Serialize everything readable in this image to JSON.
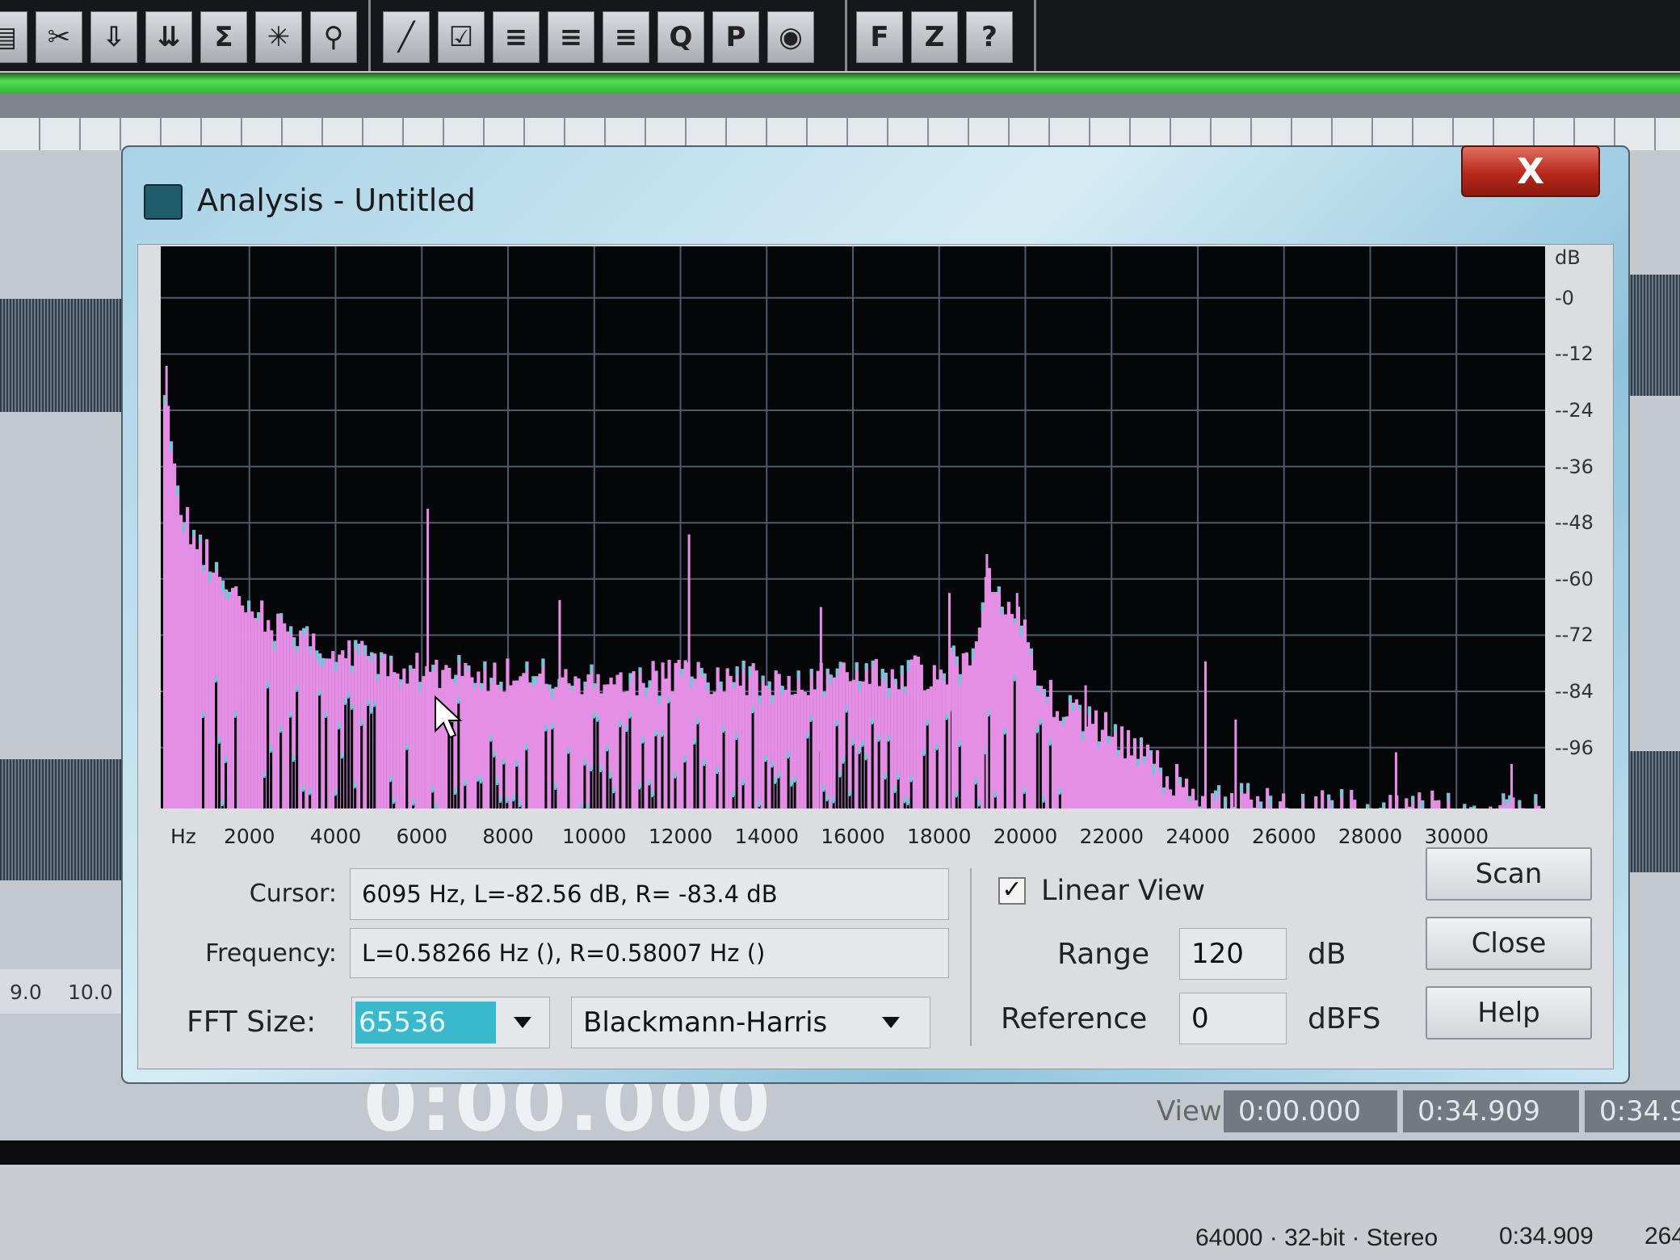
{
  "toolbar": {
    "group1": [
      "paste-icon",
      "cut-icon",
      "mix-paste-icon",
      "insert-icon",
      "zoom-waveform-icon",
      "spectrum-icon",
      "find-icon"
    ],
    "group2": [
      "analysis-icon",
      "checklist-icon",
      "meter-icon",
      "eq-icon",
      "waveform-icon",
      "q-document-icon",
      "p-document-icon",
      "cd-icon"
    ],
    "group3": [
      "f-icon",
      "scroll-icon",
      "help-icon"
    ],
    "group3_glyphs": [
      "F",
      "Z",
      "?"
    ],
    "group2_glyphs": [
      "╱",
      "☑",
      "≡",
      "≡",
      "≡",
      "Q",
      "P",
      "◉"
    ],
    "group1_glyphs": [
      "▤",
      "✂",
      "⇩",
      "⇊",
      "Σ",
      "✳",
      "⚲"
    ]
  },
  "colors": {
    "accent_green": "#4fe04f",
    "spectrum_fill": "#e58ee6",
    "spectrum_edge": "#3fe0d0",
    "plot_bg": "#050608",
    "grid": "#4c5a6c",
    "selection": "#3bb9cc",
    "close_red": "#b8281a"
  },
  "background": {
    "ruler_labels": [
      "9.0",
      "10.0"
    ],
    "time_display": "0:00.000",
    "view_label": "View",
    "view_start": "0:00.000",
    "view_end": "0:34.909",
    "view_length": "0:34.9",
    "status_format": "64000 · 32-bit · Stereo",
    "status_length": "0:34.909",
    "status_size": "264"
  },
  "dialog": {
    "title": "Analysis - Untitled",
    "close_glyph": "X",
    "cursor_label": "Cursor:",
    "cursor_value": "6095 Hz, L=-82.56 dB, R= -83.4 dB",
    "frequency_label": "Frequency:",
    "frequency_value": "L=0.58266 Hz (), R=0.58007 Hz ()",
    "fft_label": "FFT Size:",
    "fft_value": "65536",
    "window_value": "Blackmann-Harris",
    "linear_view_label": "Linear View",
    "linear_view_checked": true,
    "range_label": "Range",
    "range_value": "120",
    "range_unit": "dB",
    "reference_label": "Reference",
    "reference_value": "0",
    "reference_unit": "dBFS",
    "scan_button": "Scan",
    "close_button": "Close",
    "help_button": "Help"
  },
  "chart_data": {
    "type": "area",
    "xlabel": "Hz",
    "ylabel": "dB",
    "xlim": [
      0,
      32000
    ],
    "ylim": [
      -109,
      11
    ],
    "grid": true,
    "x_ticks": [
      2000,
      4000,
      6000,
      8000,
      10000,
      12000,
      14000,
      16000,
      18000,
      20000,
      22000,
      24000,
      26000,
      28000,
      30000
    ],
    "x_tick_labels": [
      "2000",
      "4000",
      "6000",
      "8000",
      "10000",
      "12000",
      "14000",
      "16000",
      "18000",
      "20000",
      "22000",
      "24000",
      "26000",
      "28000",
      "30000"
    ],
    "y_ticks": [
      0,
      -12,
      -24,
      -36,
      -48,
      -60,
      -72,
      -84,
      -96
    ],
    "y_tick_labels": [
      "0",
      "-12",
      "-24",
      "-36",
      "-48",
      "-60",
      "-72",
      "-84",
      "-96"
    ],
    "envelope": [
      [
        0,
        -20
      ],
      [
        300,
        -40
      ],
      [
        700,
        -50
      ],
      [
        1200,
        -56
      ],
      [
        2000,
        -64
      ],
      [
        3000,
        -70
      ],
      [
        4000,
        -74
      ],
      [
        6000,
        -78
      ],
      [
        10000,
        -79
      ],
      [
        16000,
        -79
      ],
      [
        18000,
        -78
      ],
      [
        18800,
        -72
      ],
      [
        19100,
        -58
      ],
      [
        19500,
        -66
      ],
      [
        19800,
        -64
      ],
      [
        20200,
        -78
      ],
      [
        20600,
        -84
      ],
      [
        22000,
        -91
      ],
      [
        23000,
        -98
      ],
      [
        24000,
        -104
      ],
      [
        26000,
        -106
      ],
      [
        32000,
        -108
      ]
    ],
    "peaks": [
      [
        50,
        -14.5
      ],
      [
        6110,
        -45
      ],
      [
        9170,
        -64.5
      ],
      [
        12170,
        -50.5
      ],
      [
        15230,
        -66
      ],
      [
        18210,
        -63
      ],
      [
        19080,
        -54.7
      ],
      [
        19780,
        -63
      ],
      [
        21370,
        -82.7
      ],
      [
        24150,
        -77.6
      ],
      [
        24850,
        -90
      ],
      [
        28570,
        -97
      ],
      [
        31250,
        -99.5
      ]
    ],
    "cursor": {
      "frequency_hz": 6095,
      "left_db": -82.56,
      "right_db": -83.4
    }
  }
}
